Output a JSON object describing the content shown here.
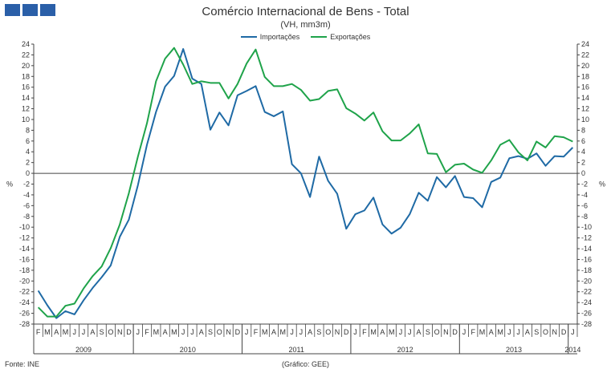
{
  "header": {
    "title": "Comércio Internacional de Bens - Total",
    "subtitle": "(VH, mm3m)"
  },
  "footer": {
    "source": "Fonte: INE",
    "credit": "(Gráfico: GEE)"
  },
  "colors": {
    "logo": "#2a5fa8",
    "importacoes": "#1f6aa5",
    "exportacoes": "#1fa34a"
  },
  "chart_data": {
    "type": "line",
    "title": "Comércio Internacional de Bens - Total",
    "subtitle": "(VH, mm3m)",
    "ylabel_left": "%",
    "ylabel_right": "%",
    "ylim": [
      -28,
      24
    ],
    "yticks": [
      24,
      22,
      20,
      18,
      16,
      14,
      12,
      10,
      8,
      6,
      4,
      2,
      0,
      -2,
      -4,
      -6,
      -8,
      -10,
      -12,
      -14,
      -16,
      -18,
      -20,
      -22,
      -24,
      -26,
      -28
    ],
    "grid": false,
    "legend_position": "top-center",
    "x": [
      "F",
      "M",
      "A",
      "M",
      "J",
      "J",
      "A",
      "S",
      "O",
      "N",
      "D",
      "J",
      "F",
      "M",
      "A",
      "M",
      "J",
      "J",
      "A",
      "S",
      "O",
      "N",
      "D",
      "J",
      "F",
      "M",
      "A",
      "M",
      "J",
      "J",
      "A",
      "S",
      "O",
      "N",
      "D",
      "J",
      "F",
      "M",
      "A",
      "M",
      "J",
      "J",
      "A",
      "S",
      "O",
      "N",
      "D",
      "J",
      "F",
      "M",
      "A",
      "M",
      "J",
      "J",
      "A",
      "S",
      "O",
      "N",
      "D",
      "J"
    ],
    "year_labels": [
      {
        "label": "2009",
        "start": 0,
        "end": 10
      },
      {
        "label": "2010",
        "start": 11,
        "end": 22
      },
      {
        "label": "2011",
        "start": 23,
        "end": 34
      },
      {
        "label": "2012",
        "start": 35,
        "end": 46
      },
      {
        "label": "2013",
        "start": 47,
        "end": 58
      },
      {
        "label": "2014",
        "start": 59,
        "end": 59
      }
    ],
    "series": [
      {
        "name": "Importações",
        "color": "#1f6aa5",
        "values": [
          -21.8,
          -24.5,
          -26.9,
          -25.6,
          -26.2,
          -23.6,
          -21.3,
          -19.3,
          -17.1,
          -11.8,
          -8.6,
          -2.2,
          5.3,
          11.4,
          16.1,
          18.1,
          23.1,
          17.6,
          16.6,
          8.1,
          11.3,
          8.9,
          14.5,
          15.3,
          16.2,
          11.4,
          10.6,
          11.5,
          1.7,
          0,
          -4.4,
          3.1,
          -1.4,
          -3.8,
          -10.3,
          -7.6,
          -6.9,
          -4.5,
          -9.5,
          -11.2,
          -10.1,
          -7.6,
          -3.6,
          -5.1,
          -0.7,
          -2.6,
          -0.5,
          -4.4,
          -4.6,
          -6.3,
          -1.6,
          -0.8,
          2.8,
          3.2,
          2.7,
          3.7,
          1.4,
          3.2,
          3.1,
          4.8
        ]
      },
      {
        "name": "Exportações",
        "color": "#1fa34a",
        "values": [
          -24.9,
          -26.6,
          -26.6,
          -24.6,
          -24.2,
          -21.4,
          -19.1,
          -17.3,
          -13.9,
          -9.5,
          -3.7,
          3.1,
          9.3,
          17.1,
          21.3,
          23.3,
          20.2,
          16.6,
          17.1,
          16.8,
          16.8,
          13.9,
          16.6,
          20.4,
          23.0,
          17.9,
          16.2,
          16.2,
          16.6,
          15.5,
          13.5,
          13.8,
          15.3,
          15.6,
          12.1,
          11.1,
          9.8,
          11.3,
          7.8,
          6.1,
          6.1,
          7.4,
          9.1,
          3.7,
          3.6,
          0.2,
          1.6,
          1.8,
          0.7,
          0.1,
          2.4,
          5.3,
          6.2,
          3.9,
          2.4,
          5.9,
          4.8,
          6.9,
          6.7,
          5.9
        ]
      }
    ]
  }
}
